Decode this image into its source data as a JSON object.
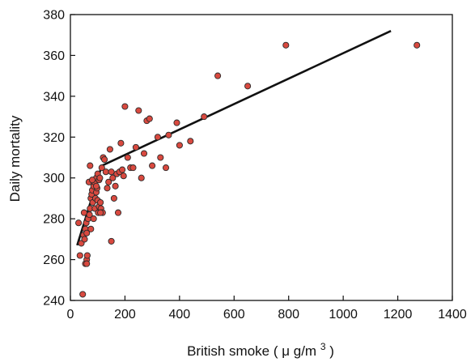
{
  "chart_data": {
    "type": "scatter",
    "title": "",
    "xlabel": "British smoke (μg/m3)",
    "xlabel_parts": {
      "prefix": "British smoke ( ",
      "unit_mu": "μ",
      "unit_rest": "g/m",
      "superscript": "3",
      "suffix": ")"
    },
    "ylabel": "Daily mortality",
    "xlim": [
      0,
      1400
    ],
    "ylim": [
      240,
      380
    ],
    "xticks": [
      0,
      200,
      400,
      600,
      800,
      1000,
      1200,
      1400
    ],
    "yticks": [
      240,
      260,
      280,
      300,
      320,
      340,
      360,
      380
    ],
    "grid": false,
    "legend": "none",
    "colors": {
      "marker_fill": "#d9493f",
      "marker_edge": "#2a2a2a",
      "line": "#111111",
      "axes": "#111111",
      "background": "#ffffff"
    },
    "series": [
      {
        "type": "scatter",
        "x": [
          45,
          30,
          35,
          40,
          48,
          55,
          55,
          60,
          62,
          58,
          65,
          70,
          72,
          75,
          75,
          78,
          80,
          82,
          85,
          85,
          88,
          90,
          92,
          95,
          95,
          98,
          100,
          100,
          102,
          105,
          105,
          108,
          110,
          112,
          115,
          118,
          120,
          125,
          130,
          135,
          140,
          145,
          150,
          155,
          160,
          165,
          170,
          175,
          180,
          185,
          190,
          195,
          200,
          210,
          220,
          230,
          240,
          250,
          260,
          270,
          280,
          290,
          300,
          320,
          330,
          350,
          360,
          390,
          400,
          440,
          490,
          540,
          650,
          790,
          1270,
          50,
          52,
          60,
          68,
          72,
          80,
          95,
          110,
          150,
          60
        ],
        "y": [
          243,
          278,
          262,
          268,
          272,
          275,
          258,
          260,
          262,
          278,
          280,
          282,
          285,
          275,
          290,
          292,
          294,
          288,
          280,
          296,
          298,
          285,
          290,
          293,
          300,
          295,
          289,
          302,
          283,
          286,
          299,
          300,
          288,
          285,
          305,
          283,
          310,
          309,
          303,
          295,
          298,
          314,
          303,
          300,
          290,
          296,
          302,
          283,
          303,
          317,
          304,
          301,
          335,
          310,
          305,
          305,
          315,
          333,
          300,
          312,
          328,
          329,
          306,
          320,
          310,
          305,
          321,
          327,
          316,
          318,
          330,
          350,
          345,
          365,
          365,
          283,
          270,
          273,
          298,
          306,
          299,
          296,
          283,
          269,
          258
        ]
      },
      {
        "type": "line",
        "x": [
          25,
          115,
          1175
        ],
        "y": [
          267,
          306,
          372
        ]
      }
    ]
  }
}
